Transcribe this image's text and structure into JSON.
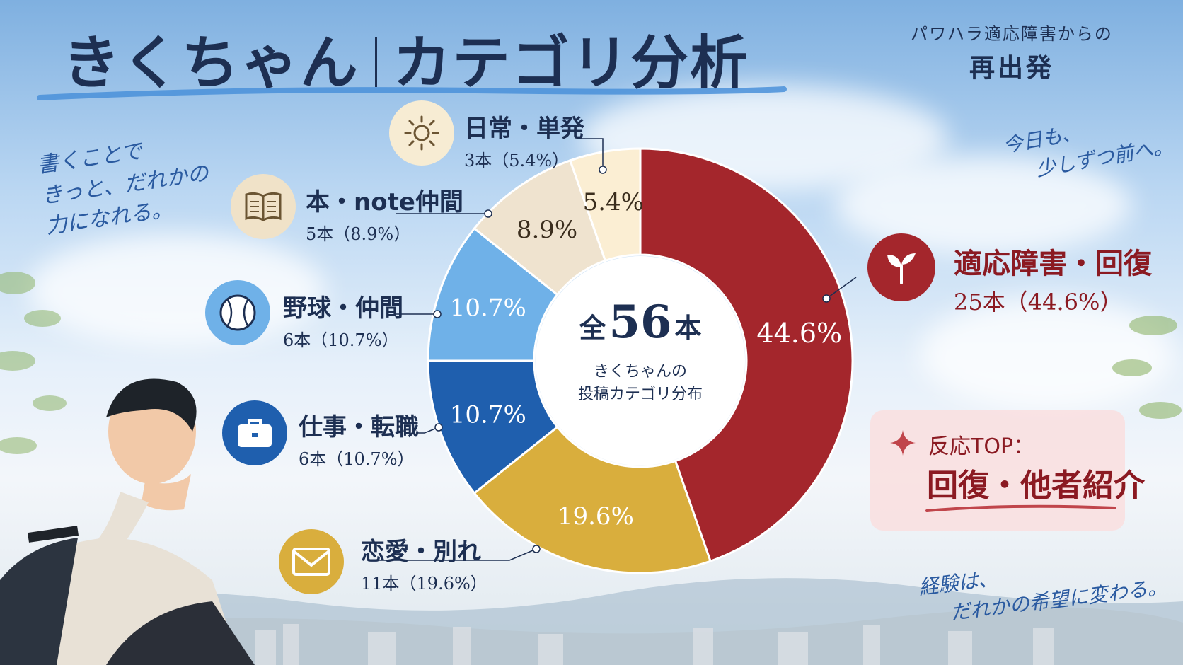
{
  "header": {
    "title_left": "きくちゃん",
    "title_right": "カテゴリ分析",
    "subtitle_line1": "パワハラ適応障害からの",
    "subtitle_line2": "再出発"
  },
  "notes": {
    "left_line1": "書くことで",
    "left_line2": "きっと、だれかの",
    "left_line3": "力になれる。",
    "right_top_line1": "今日も、",
    "right_top_line2": "少しずつ前へ。",
    "right_bottom_line1": "経験は、",
    "right_bottom_line2": "だれかの希望に変わる。"
  },
  "center": {
    "total_prefix": "全",
    "total_value": "56",
    "total_suffix": "本",
    "caption_line1": "きくちゃんの",
    "caption_line2": "投稿カテゴリ分布"
  },
  "highlight": {
    "label": "反応TOP：",
    "value": "回復・他者紹介"
  },
  "chart_data": {
    "type": "pie",
    "donut": true,
    "total": 56,
    "unit": "本",
    "categories": [
      "適応障害・回復",
      "恋愛・別れ",
      "仕事・転職",
      "野球・仲間",
      "本・note仲間",
      "日常・単発"
    ],
    "values": [
      25,
      11,
      6,
      6,
      5,
      3
    ],
    "percentages": [
      44.6,
      19.6,
      10.7,
      10.7,
      8.9,
      5.4
    ],
    "slice_labels": [
      "44.6%",
      "19.6%",
      "10.7%",
      "10.7%",
      "8.9%",
      "5.4%"
    ],
    "count_labels": [
      "25本（44.6%）",
      "11本（19.6%）",
      "6本（10.7%）",
      "6本（10.7%）",
      "5本（8.9%）",
      "3本（5.4%）"
    ],
    "colors": [
      "#a4262c",
      "#d9ae3d",
      "#1f5fae",
      "#6fb1e8",
      "#efe3cf",
      "#fbeed3"
    ],
    "label_colors": [
      "#ffffff",
      "#ffffff",
      "#ffffff",
      "#ffffff",
      "#3b2e1e",
      "#3b2e1e"
    ],
    "icons": [
      "sprout-icon",
      "envelope-icon",
      "briefcase-icon",
      "baseball-icon",
      "book-icon",
      "sun-icon"
    ],
    "start_angle": "12 o'clock",
    "direction": "clockwise"
  }
}
